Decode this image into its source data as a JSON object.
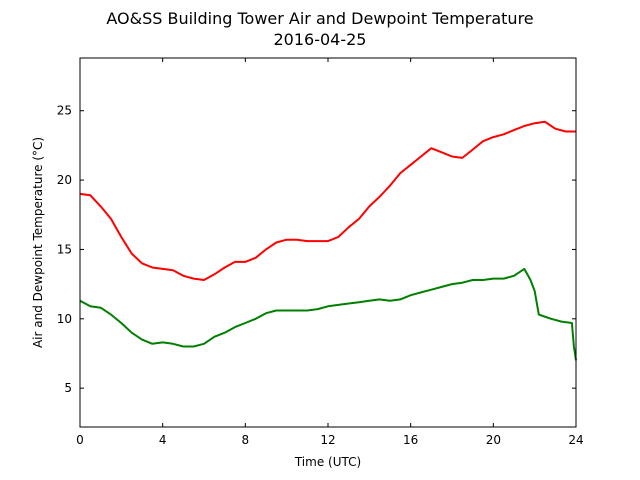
{
  "chart_data": {
    "type": "line",
    "title_lines": [
      "AO&SS Building Tower Air and Dewpoint Temperature",
      "2016-04-25"
    ],
    "xlabel": "Time (UTC)",
    "ylabel": "Air and Dewpoint Temperature (°C)",
    "xlim": [
      0,
      24
    ],
    "ylim": [
      2.2,
      28.8
    ],
    "xticks": [
      "0",
      "4",
      "8",
      "12",
      "16",
      "20",
      "24"
    ],
    "yticks": [
      "5",
      "10",
      "15",
      "20",
      "25"
    ],
    "grid": false,
    "legend": "none",
    "series": [
      {
        "color": "#ff0000",
        "x": [
          0,
          0.5,
          1,
          1.5,
          2,
          2.5,
          3,
          3.5,
          4,
          4.5,
          5,
          5.5,
          6,
          6.5,
          7,
          7.5,
          8,
          8.5,
          9,
          9.5,
          10,
          10.5,
          11,
          11.5,
          12,
          12.5,
          13,
          13.5,
          14,
          14.5,
          15,
          15.5,
          16,
          16.5,
          17,
          17.5,
          18,
          18.5,
          19,
          19.5,
          20,
          20.5,
          21,
          21.5,
          22,
          22.5,
          23,
          23.5,
          24
        ],
        "values": [
          19.0,
          18.9,
          18.1,
          17.2,
          15.9,
          14.7,
          14.0,
          13.7,
          13.6,
          13.5,
          13.1,
          12.9,
          12.8,
          13.2,
          13.7,
          14.1,
          14.1,
          14.4,
          15.0,
          15.5,
          15.7,
          15.7,
          15.6,
          15.6,
          15.6,
          15.9,
          16.6,
          17.2,
          18.1,
          18.8,
          19.6,
          20.5,
          21.1,
          21.7,
          22.3,
          22.0,
          21.7,
          21.6,
          22.2,
          22.8,
          23.1,
          23.3,
          23.6,
          23.9,
          24.1,
          24.2,
          23.7,
          23.5,
          23.5
        ]
      },
      {
        "color": "#008000",
        "x": [
          0,
          0.5,
          1,
          1.5,
          2,
          2.5,
          3,
          3.5,
          4,
          4.5,
          5,
          5.5,
          6,
          6.5,
          7,
          7.5,
          8,
          8.5,
          9,
          9.5,
          10,
          10.5,
          11,
          11.5,
          12,
          12.5,
          13,
          13.5,
          14,
          14.5,
          15,
          15.5,
          16,
          16.5,
          17,
          17.5,
          18,
          18.5,
          19,
          19.5,
          20,
          20.5,
          21,
          21.5,
          21.8,
          22.0,
          22.2,
          22.4,
          22.8,
          23.3,
          23.8,
          23.9,
          24
        ],
        "values": [
          11.3,
          10.9,
          10.8,
          10.3,
          9.7,
          9.0,
          8.5,
          8.2,
          8.3,
          8.2,
          8.0,
          8.0,
          8.2,
          8.7,
          9.0,
          9.4,
          9.7,
          10.0,
          10.4,
          10.6,
          10.6,
          10.6,
          10.6,
          10.7,
          10.9,
          11.0,
          11.1,
          11.2,
          11.3,
          11.4,
          11.3,
          11.4,
          11.7,
          11.9,
          12.1,
          12.3,
          12.5,
          12.6,
          12.8,
          12.8,
          12.9,
          12.9,
          13.1,
          13.6,
          12.8,
          12.0,
          10.3,
          10.2,
          10.0,
          9.8,
          9.7,
          8.0,
          7.0
        ]
      }
    ]
  }
}
